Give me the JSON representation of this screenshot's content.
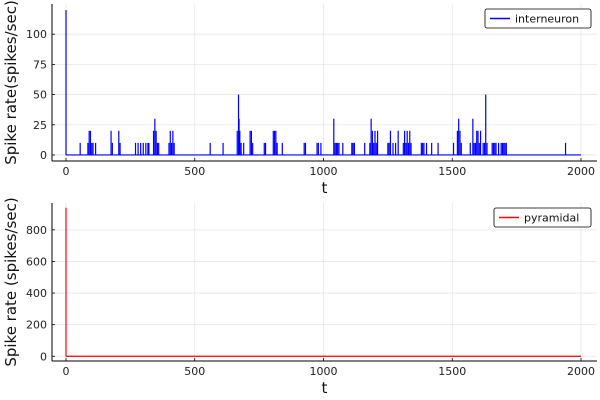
{
  "chart_data": [
    {
      "type": "line",
      "xlabel": "t",
      "ylabel": "Spike rate(spikes/sec)",
      "xlim": [
        0,
        2000
      ],
      "ylim": [
        -5,
        125
      ],
      "x_ticks": [
        0,
        500,
        1000,
        1500,
        2000
      ],
      "y_ticks": [
        0,
        25,
        50,
        75,
        100
      ],
      "grid": true,
      "legend_position": "top-right",
      "series": [
        {
          "name": "interneuron",
          "color": "#0000ff",
          "baseline": 0,
          "spikes": [
            [
              0,
              120
            ],
            [
              55,
              10
            ],
            [
              85,
              10
            ],
            [
              90,
              20
            ],
            [
              95,
              20
            ],
            [
              100,
              10
            ],
            [
              105,
              10
            ],
            [
              115,
              10
            ],
            [
              175,
              20
            ],
            [
              180,
              10
            ],
            [
              205,
              20
            ],
            [
              210,
              10
            ],
            [
              270,
              10
            ],
            [
              280,
              10
            ],
            [
              290,
              10
            ],
            [
              300,
              10
            ],
            [
              310,
              10
            ],
            [
              318,
              10
            ],
            [
              322,
              10
            ],
            [
              340,
              20
            ],
            [
              345,
              30
            ],
            [
              350,
              20
            ],
            [
              355,
              10
            ],
            [
              360,
              10
            ],
            [
              400,
              10
            ],
            [
              405,
              20
            ],
            [
              410,
              10
            ],
            [
              415,
              20
            ],
            [
              420,
              10
            ],
            [
              560,
              10
            ],
            [
              610,
              10
            ],
            [
              665,
              20
            ],
            [
              670,
              50
            ],
            [
              672,
              30
            ],
            [
              675,
              20
            ],
            [
              680,
              10
            ],
            [
              690,
              10
            ],
            [
              715,
              20
            ],
            [
              720,
              20
            ],
            [
              725,
              10
            ],
            [
              770,
              10
            ],
            [
              775,
              10
            ],
            [
              805,
              20
            ],
            [
              810,
              20
            ],
            [
              815,
              20
            ],
            [
              820,
              10
            ],
            [
              840,
              10
            ],
            [
              925,
              10
            ],
            [
              930,
              10
            ],
            [
              975,
              10
            ],
            [
              980,
              10
            ],
            [
              990,
              10
            ],
            [
              1040,
              30
            ],
            [
              1045,
              10
            ],
            [
              1050,
              10
            ],
            [
              1055,
              10
            ],
            [
              1060,
              10
            ],
            [
              1075,
              10
            ],
            [
              1110,
              10
            ],
            [
              1115,
              10
            ],
            [
              1120,
              10
            ],
            [
              1160,
              10
            ],
            [
              1180,
              10
            ],
            [
              1185,
              30
            ],
            [
              1190,
              20
            ],
            [
              1195,
              10
            ],
            [
              1200,
              20
            ],
            [
              1205,
              10
            ],
            [
              1210,
              20
            ],
            [
              1250,
              10
            ],
            [
              1255,
              10
            ],
            [
              1260,
              20
            ],
            [
              1270,
              10
            ],
            [
              1280,
              10
            ],
            [
              1290,
              20
            ],
            [
              1310,
              10
            ],
            [
              1315,
              20
            ],
            [
              1320,
              10
            ],
            [
              1325,
              20
            ],
            [
              1330,
              10
            ],
            [
              1335,
              20
            ],
            [
              1340,
              10
            ],
            [
              1380,
              10
            ],
            [
              1385,
              10
            ],
            [
              1390,
              10
            ],
            [
              1400,
              10
            ],
            [
              1420,
              10
            ],
            [
              1445,
              10
            ],
            [
              1505,
              10
            ],
            [
              1520,
              20
            ],
            [
              1525,
              30
            ],
            [
              1530,
              20
            ],
            [
              1535,
              10
            ],
            [
              1570,
              10
            ],
            [
              1580,
              30
            ],
            [
              1585,
              10
            ],
            [
              1590,
              10
            ],
            [
              1595,
              20
            ],
            [
              1600,
              20
            ],
            [
              1605,
              10
            ],
            [
              1610,
              20
            ],
            [
              1620,
              10
            ],
            [
              1625,
              10
            ],
            [
              1630,
              50
            ],
            [
              1635,
              10
            ],
            [
              1655,
              10
            ],
            [
              1660,
              10
            ],
            [
              1665,
              10
            ],
            [
              1670,
              10
            ],
            [
              1680,
              10
            ],
            [
              1690,
              10
            ],
            [
              1695,
              10
            ],
            [
              1700,
              10
            ],
            [
              1705,
              10
            ],
            [
              1710,
              10
            ],
            [
              1940,
              10
            ]
          ]
        }
      ]
    },
    {
      "type": "line",
      "xlabel": "t",
      "ylabel": "Spike rate (spikes/sec)",
      "xlim": [
        0,
        2000
      ],
      "ylim": [
        -30,
        970
      ],
      "x_ticks": [
        0,
        500,
        1000,
        1500,
        2000
      ],
      "y_ticks": [
        0,
        200,
        400,
        600,
        800
      ],
      "grid": true,
      "legend_position": "top-right",
      "series": [
        {
          "name": "pyramidal",
          "color": "#ff0000",
          "baseline": 0,
          "spikes": [
            [
              0,
              940
            ],
            [
              330,
              2
            ],
            [
              840,
              2
            ],
            [
              1390,
              2
            ],
            [
              1700,
              2
            ]
          ]
        }
      ]
    }
  ]
}
